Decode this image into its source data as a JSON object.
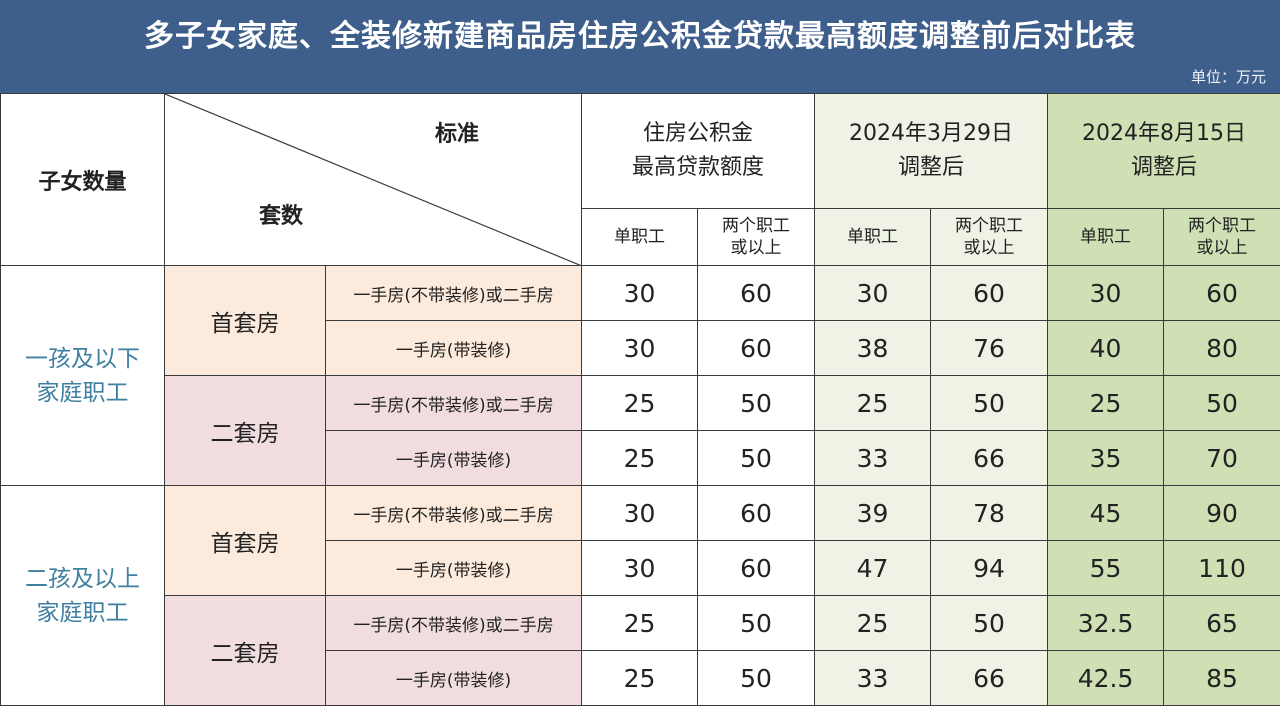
{
  "title": "多子女家庭、全装修新建商品房住房公积金贷款最高额度调整前后对比表",
  "unit": "单位：万元",
  "header": {
    "children_count": "子女数量",
    "standard": "标准",
    "sets": "套数",
    "col_groups": [
      {
        "line1": "住房公积金",
        "line2": "最高贷款额度"
      },
      {
        "line1": "2024年3月29日",
        "line2": "调整后"
      },
      {
        "line1": "2024年8月15日",
        "line2": "调整后"
      }
    ],
    "single": "单职工",
    "double_line1": "两个职工",
    "double_line2": "或以上"
  },
  "groups": [
    {
      "line1": "一孩及以下",
      "line2": "家庭职工"
    },
    {
      "line1": "二孩及以上",
      "line2": "家庭职工"
    }
  ],
  "set_labels": [
    "首套房",
    "二套房",
    "首套房",
    "二套房"
  ],
  "rows": [
    {
      "type": "一手房(不带装修)或二手房",
      "values": [
        "30",
        "60",
        "30",
        "60",
        "30",
        "60"
      ]
    },
    {
      "type": "一手房(带装修)",
      "values": [
        "30",
        "60",
        "38",
        "76",
        "40",
        "80"
      ]
    },
    {
      "type": "一手房(不带装修)或二手房",
      "values": [
        "25",
        "50",
        "25",
        "50",
        "25",
        "50"
      ]
    },
    {
      "type": "一手房(带装修)",
      "values": [
        "25",
        "50",
        "33",
        "66",
        "35",
        "70"
      ]
    },
    {
      "type": "一手房(不带装修)或二手房",
      "values": [
        "30",
        "60",
        "39",
        "78",
        "45",
        "90"
      ]
    },
    {
      "type": "一手房(带装修)",
      "values": [
        "30",
        "60",
        "47",
        "94",
        "55",
        "110"
      ]
    },
    {
      "type": "一手房(不带装修)或二手房",
      "values": [
        "25",
        "50",
        "25",
        "50",
        "32.5",
        "65"
      ]
    },
    {
      "type": "一手房(带装修)",
      "values": [
        "25",
        "50",
        "33",
        "66",
        "42.5",
        "85"
      ]
    }
  ],
  "colors": {
    "header_bg": "#3e5e8c",
    "group_label": "#3f7fa0",
    "first_set_bg": "#fcebdc",
    "second_set_bg": "#f1dde0",
    "col_mid_bg": "#eef3e6",
    "col_right_bg": "#cfe0b4"
  }
}
